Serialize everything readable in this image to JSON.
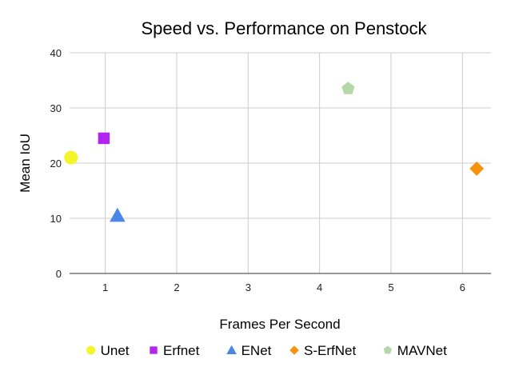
{
  "chart_data": {
    "type": "scatter",
    "title": "Speed vs. Performance on Penstock",
    "xlabel": "Frames Per Second",
    "ylabel": "Mean IoU",
    "xlim": [
      0.5,
      6.4
    ],
    "ylim": [
      0,
      40
    ],
    "xticks": [
      1,
      2,
      3,
      4,
      5,
      6
    ],
    "yticks": [
      0,
      10,
      20,
      30,
      40
    ],
    "grid": true,
    "legend_position": "bottom",
    "series": [
      {
        "name": "Unet",
        "marker": "circle",
        "color": "#f4f42a",
        "points": [
          {
            "x": 0.52,
            "y": 21
          }
        ]
      },
      {
        "name": "Erfnet",
        "marker": "square",
        "color": "#b026f0",
        "points": [
          {
            "x": 0.98,
            "y": 24.5
          }
        ]
      },
      {
        "name": "ENet",
        "marker": "triangle",
        "color": "#4a86e8",
        "points": [
          {
            "x": 1.17,
            "y": 10.5
          }
        ]
      },
      {
        "name": "S-ErfNet",
        "marker": "diamond",
        "color": "#f7930a",
        "points": [
          {
            "x": 6.2,
            "y": 19
          }
        ]
      },
      {
        "name": "MAVNet",
        "marker": "pentagon",
        "color": "#b6d7a8",
        "points": [
          {
            "x": 4.4,
            "y": 33.5
          }
        ]
      }
    ]
  }
}
